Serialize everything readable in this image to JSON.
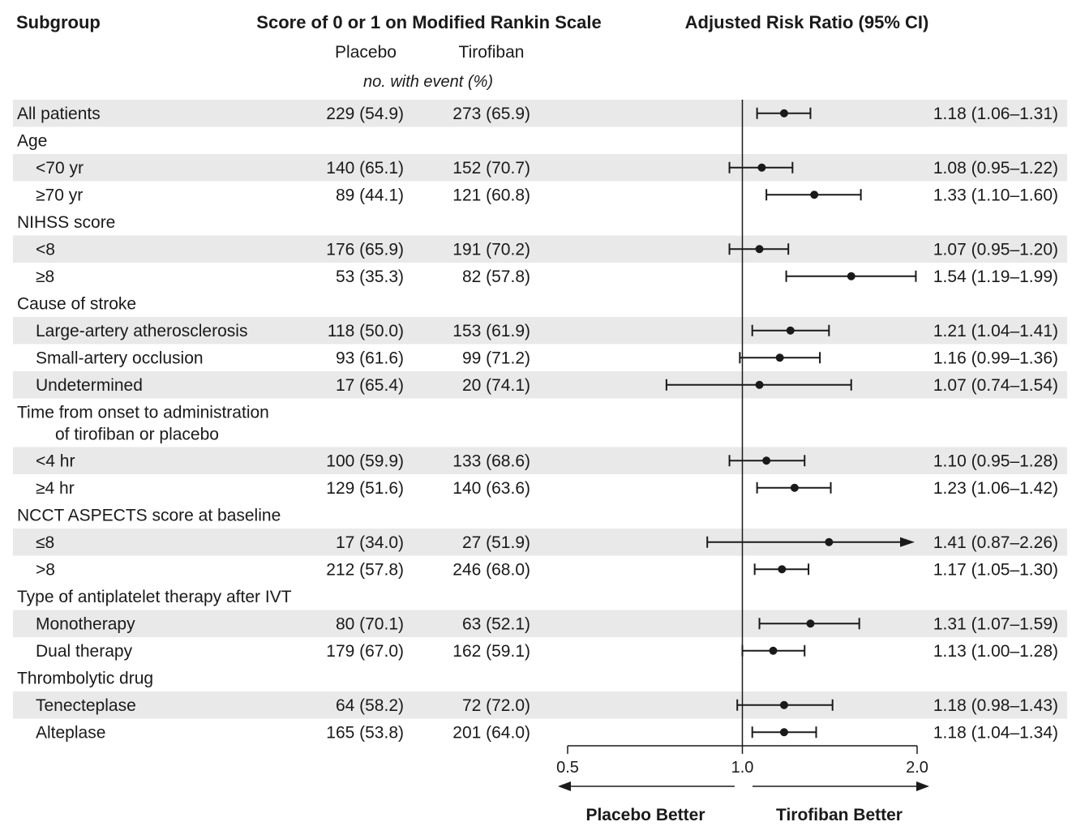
{
  "chart_data": {
    "type": "forest",
    "headers": {
      "subgroup": "Subgroup",
      "outcome": "Score of 0 or 1 on Modified Rankin Scale",
      "placebo": "Placebo",
      "tirofiban": "Tirofiban",
      "unit_note": "no. with event (%)",
      "effect": "Adjusted Risk Ratio (95% CI)"
    },
    "x_axis": {
      "scale": "log",
      "range": [
        0.5,
        2.0
      ],
      "ticks": [
        {
          "value": 0.5,
          "label": "0.5"
        },
        {
          "value": 1.0,
          "label": "1.0"
        },
        {
          "value": 2.0,
          "label": "2.0"
        }
      ],
      "reference": 1.0
    },
    "favors": {
      "left": "Placebo Better",
      "right": "Tirofiban Better"
    },
    "rows": [
      {
        "label": "All patients",
        "kind": "data",
        "indent": 0,
        "placebo": "229 (54.9)",
        "tirofiban": "273 (65.9)",
        "rr": 1.18,
        "lo": 1.06,
        "hi": 1.31,
        "ci_text": "1.18 (1.06–1.31)"
      },
      {
        "label": "Age",
        "kind": "header",
        "indent": 0
      },
      {
        "label": "<70 yr",
        "kind": "data",
        "indent": 1,
        "placebo": "140 (65.1)",
        "tirofiban": "152 (70.7)",
        "rr": 1.08,
        "lo": 0.95,
        "hi": 1.22,
        "ci_text": "1.08 (0.95–1.22)"
      },
      {
        "label": "≥70 yr",
        "kind": "data",
        "indent": 1,
        "placebo": "89 (44.1)",
        "tirofiban": "121 (60.8)",
        "rr": 1.33,
        "lo": 1.1,
        "hi": 1.6,
        "ci_text": "1.33 (1.10–1.60)"
      },
      {
        "label": "NIHSS score",
        "kind": "header",
        "indent": 0
      },
      {
        "label": "<8",
        "kind": "data",
        "indent": 1,
        "placebo": "176 (65.9)",
        "tirofiban": "191 (70.2)",
        "rr": 1.07,
        "lo": 0.95,
        "hi": 1.2,
        "ci_text": "1.07 (0.95–1.20)"
      },
      {
        "label": "≥8",
        "kind": "data",
        "indent": 1,
        "placebo": "53 (35.3)",
        "tirofiban": "82 (57.8)",
        "rr": 1.54,
        "lo": 1.19,
        "hi": 1.99,
        "ci_text": "1.54 (1.19–1.99)"
      },
      {
        "label": "Cause of stroke",
        "kind": "header",
        "indent": 0
      },
      {
        "label": "Large-artery atherosclerosis",
        "kind": "data",
        "indent": 1,
        "placebo": "118 (50.0)",
        "tirofiban": "153 (61.9)",
        "rr": 1.21,
        "lo": 1.04,
        "hi": 1.41,
        "ci_text": "1.21 (1.04–1.41)"
      },
      {
        "label": "Small-artery occlusion",
        "kind": "data",
        "indent": 1,
        "placebo": "93 (61.6)",
        "tirofiban": "99 (71.2)",
        "rr": 1.16,
        "lo": 0.99,
        "hi": 1.36,
        "ci_text": "1.16 (0.99–1.36)"
      },
      {
        "label": "Undetermined",
        "kind": "data",
        "indent": 1,
        "placebo": "17 (65.4)",
        "tirofiban": "20 (74.1)",
        "rr": 1.07,
        "lo": 0.74,
        "hi": 1.54,
        "ci_text": "1.07 (0.74–1.54)"
      },
      {
        "label": "Time from onset to administration",
        "label2": "of tirofiban or placebo",
        "kind": "header2",
        "indent": 0
      },
      {
        "label": "<4 hr",
        "kind": "data",
        "indent": 1,
        "placebo": "100 (59.9)",
        "tirofiban": "133 (68.6)",
        "rr": 1.1,
        "lo": 0.95,
        "hi": 1.28,
        "ci_text": "1.10 (0.95–1.28)"
      },
      {
        "label": "≥4 hr",
        "kind": "data",
        "indent": 1,
        "placebo": "129 (51.6)",
        "tirofiban": "140 (63.6)",
        "rr": 1.23,
        "lo": 1.06,
        "hi": 1.42,
        "ci_text": "1.23 (1.06–1.42)"
      },
      {
        "label": "NCCT ASPECTS score at baseline",
        "kind": "header",
        "indent": 0
      },
      {
        "label": "≤8",
        "kind": "data",
        "indent": 1,
        "placebo": "17 (34.0)",
        "tirofiban": "27 (51.9)",
        "rr": 1.41,
        "lo": 0.87,
        "hi": 2.26,
        "ci_text": "1.41 (0.87–2.26)",
        "hi_truncated": true
      },
      {
        "label": ">8",
        "kind": "data",
        "indent": 1,
        "placebo": "212 (57.8)",
        "tirofiban": "246 (68.0)",
        "rr": 1.17,
        "lo": 1.05,
        "hi": 1.3,
        "ci_text": "1.17 (1.05–1.30)"
      },
      {
        "label": "Type of antiplatelet therapy after IVT",
        "kind": "header",
        "indent": 0
      },
      {
        "label": "Monotherapy",
        "kind": "data",
        "indent": 1,
        "placebo": "80 (70.1)",
        "tirofiban": "63 (52.1)",
        "rr": 1.31,
        "lo": 1.07,
        "hi": 1.59,
        "ci_text": "1.31 (1.07–1.59)"
      },
      {
        "label": "Dual therapy",
        "kind": "data",
        "indent": 1,
        "placebo": "179 (67.0)",
        "tirofiban": "162 (59.1)",
        "rr": 1.13,
        "lo": 1.0,
        "hi": 1.28,
        "ci_text": "1.13 (1.00–1.28)"
      },
      {
        "label": "Thrombolytic drug",
        "kind": "header",
        "indent": 0
      },
      {
        "label": "Tenecteplase",
        "kind": "data",
        "indent": 1,
        "placebo": "64 (58.2)",
        "tirofiban": "72 (72.0)",
        "rr": 1.18,
        "lo": 0.98,
        "hi": 1.43,
        "ci_text": "1.18 (0.98–1.43)"
      },
      {
        "label": "Alteplase",
        "kind": "data",
        "indent": 1,
        "placebo": "165 (53.8)",
        "tirofiban": "201 (64.0)",
        "rr": 1.18,
        "lo": 1.04,
        "hi": 1.34,
        "ci_text": "1.18 (1.04–1.34)"
      }
    ]
  }
}
